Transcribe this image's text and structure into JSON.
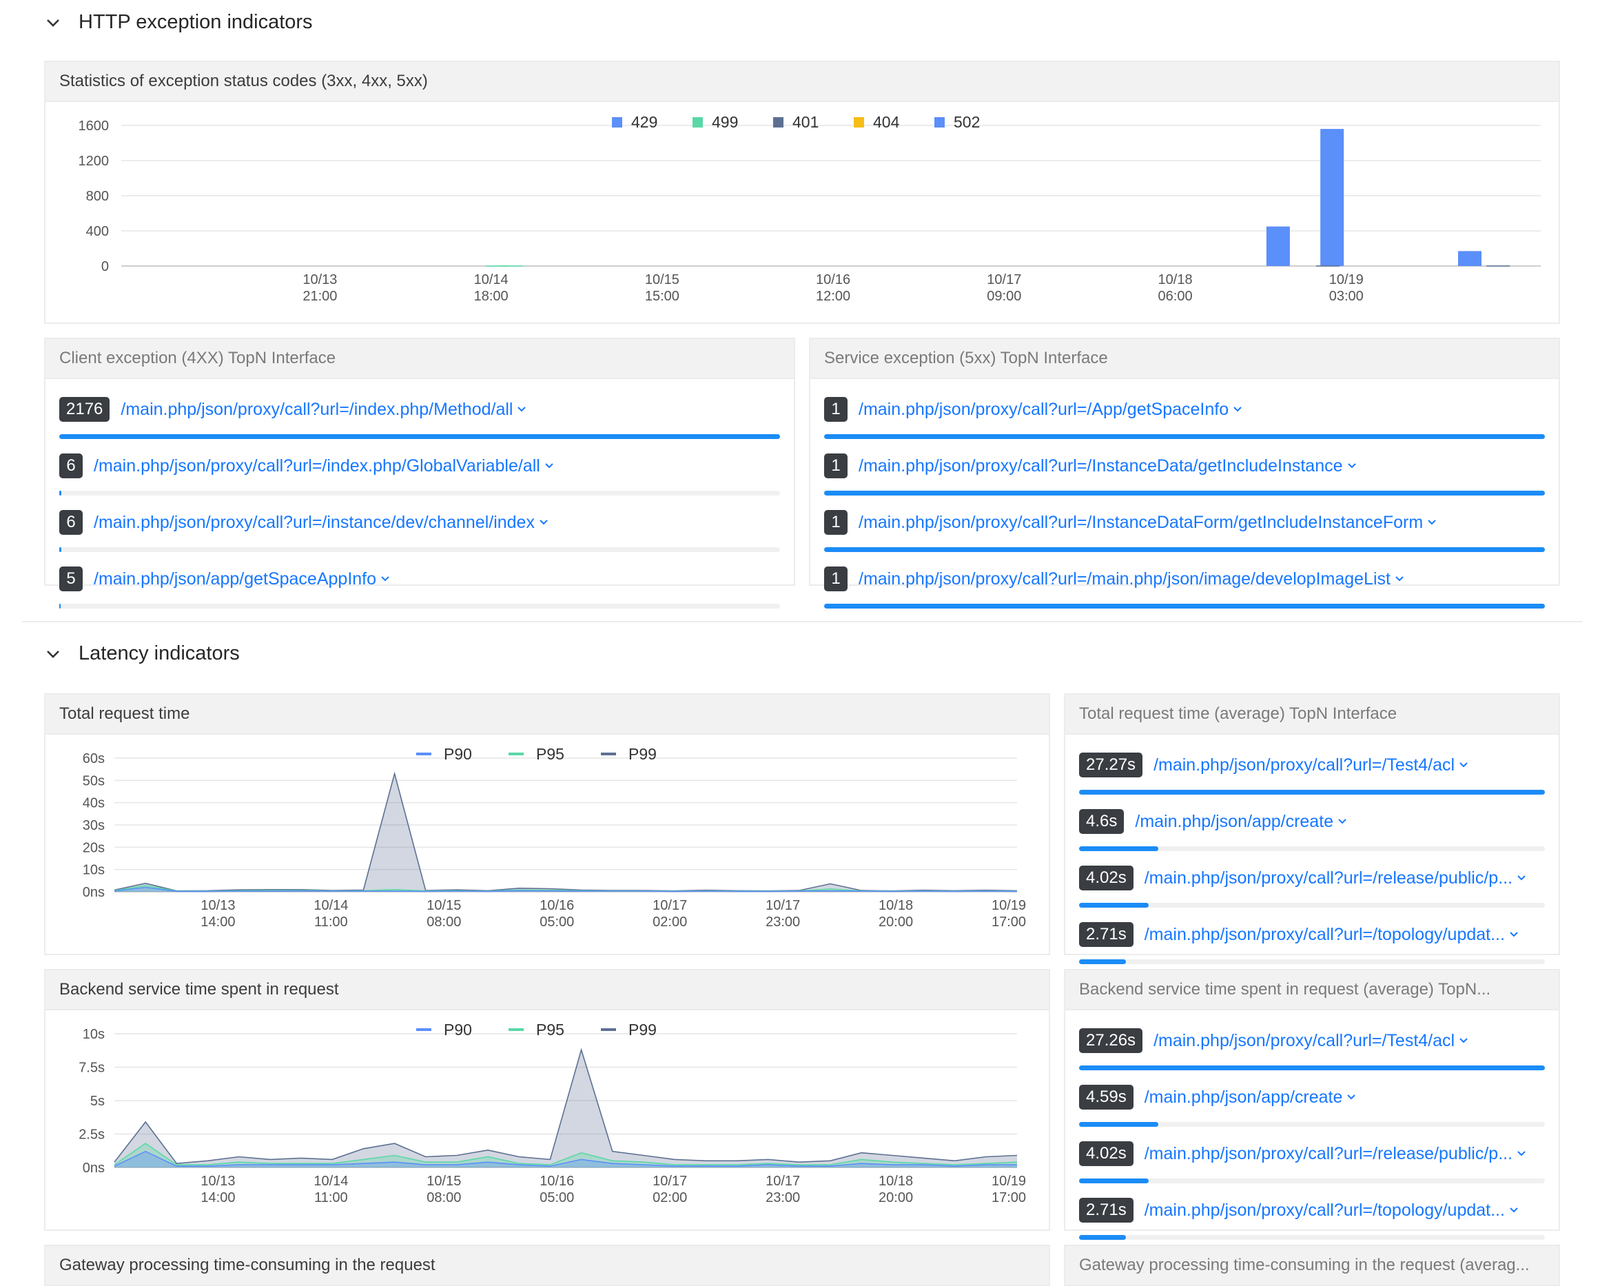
{
  "http_section": {
    "title": "HTTP exception indicators"
  },
  "latency_section": {
    "title": "Latency indicators"
  },
  "status_codes_card": {
    "title": "Statistics of exception status codes (3xx, 4xx, 5xx)"
  },
  "client_topn": {
    "title": "Client exception (4XX) TopN Interface",
    "items": [
      {
        "value": "2176",
        "label": "/main.php/json/proxy/call?url=/index.php/Method/all",
        "ratio": 1.0
      },
      {
        "value": "6",
        "label": "/main.php/json/proxy/call?url=/index.php/GlobalVariable/all",
        "ratio": 0.003
      },
      {
        "value": "6",
        "label": "/main.php/json/proxy/call?url=/instance/dev/channel/index",
        "ratio": 0.003
      },
      {
        "value": "5",
        "label": "/main.php/json/app/getSpaceAppInfo",
        "ratio": 0.002
      }
    ]
  },
  "service_topn": {
    "title": "Service exception (5xx) TopN Interface",
    "items": [
      {
        "value": "1",
        "label": "/main.php/json/proxy/call?url=/App/getSpaceInfo",
        "ratio": 1.0
      },
      {
        "value": "1",
        "label": "/main.php/json/proxy/call?url=/InstanceData/getIncludeInstance",
        "ratio": 1.0
      },
      {
        "value": "1",
        "label": "/main.php/json/proxy/call?url=/InstanceDataForm/getIncludeInstanceForm",
        "ratio": 1.0
      },
      {
        "value": "1",
        "label": "/main.php/json/proxy/call?url=/main.php/json/image/developImageList",
        "ratio": 1.0
      }
    ]
  },
  "total_request_card": {
    "title": "Total request time"
  },
  "total_topn": {
    "title": "Total request time (average) TopN Interface",
    "items": [
      {
        "value": "27.27s",
        "label": "/main.php/json/proxy/call?url=/Test4/acl",
        "ratio": 1.0
      },
      {
        "value": "4.6s",
        "label": "/main.php/json/app/create",
        "ratio": 0.17
      },
      {
        "value": "4.02s",
        "label": "/main.php/json/proxy/call?url=/release/public/p...",
        "ratio": 0.15
      },
      {
        "value": "2.71s",
        "label": "/main.php/json/proxy/call?url=/topology/updat...",
        "ratio": 0.1
      }
    ]
  },
  "backend_card": {
    "title": "Backend service time spent in request"
  },
  "backend_topn": {
    "title": "Backend service time spent in request (average) TopN...",
    "items": [
      {
        "value": "27.26s",
        "label": "/main.php/json/proxy/call?url=/Test4/acl",
        "ratio": 1.0
      },
      {
        "value": "4.59s",
        "label": "/main.php/json/app/create",
        "ratio": 0.17
      },
      {
        "value": "4.02s",
        "label": "/main.php/json/proxy/call?url=/release/public/p...",
        "ratio": 0.15
      },
      {
        "value": "2.71s",
        "label": "/main.php/json/proxy/call?url=/topology/updat...",
        "ratio": 0.1
      }
    ]
  },
  "gateway_card": {
    "title": "Gateway processing time-consuming in the request"
  },
  "gateway_topn": {
    "title": "Gateway processing time-consuming in the request (averag..."
  },
  "colors": {
    "429": "#5b8ff9",
    "499": "#5ad8a6",
    "401": "#5d7092",
    "404": "#f6bd16",
    "502": "#5b8ff9",
    "p90": "#5b8ff9",
    "p95": "#5ad8a6",
    "p99": "#5d7092"
  },
  "chart_data": [
    {
      "type": "bar",
      "title": "Statistics of exception status codes (3xx, 4xx, 5xx)",
      "x_ticks": [
        [
          "10/13",
          "21:00"
        ],
        [
          "10/14",
          "18:00"
        ],
        [
          "10/15",
          "15:00"
        ],
        [
          "10/16",
          "12:00"
        ],
        [
          "10/17",
          "09:00"
        ],
        [
          "10/18",
          "06:00"
        ],
        [
          "10/19",
          "03:00"
        ]
      ],
      "y_ticks": [
        "0",
        "400",
        "800",
        "1200",
        "1600"
      ],
      "ylim": [
        0,
        1600
      ],
      "legend_position": "top",
      "series": [
        {
          "name": "429",
          "points": [
            [
              0.815,
              450
            ],
            [
              0.853,
              1560
            ],
            [
              0.95,
              170
            ]
          ]
        },
        {
          "name": "499",
          "points": [
            [
              0.265,
              5
            ],
            [
              0.275,
              6
            ]
          ]
        },
        {
          "name": "401",
          "points": [
            [
              0.85,
              6
            ],
            [
              0.97,
              6
            ]
          ]
        },
        {
          "name": "404",
          "points": []
        },
        {
          "name": "502",
          "points": []
        }
      ]
    },
    {
      "type": "area",
      "title": "Total request time",
      "x_ticks": [
        [
          "10/13",
          "14:00"
        ],
        [
          "10/14",
          "11:00"
        ],
        [
          "10/15",
          "08:00"
        ],
        [
          "10/16",
          "05:00"
        ],
        [
          "10/17",
          "02:00"
        ],
        [
          "10/17",
          "23:00"
        ],
        [
          "10/18",
          "20:00"
        ],
        [
          "10/19",
          "17:00"
        ]
      ],
      "y_ticks": [
        "0ns",
        "10s",
        "20s",
        "30s",
        "40s",
        "50s",
        "60s"
      ],
      "ylim": [
        0,
        60
      ],
      "legend_position": "top",
      "series": [
        {
          "name": "P90",
          "values": [
            0.3,
            2.0,
            0.2,
            0.2,
            0.3,
            0.3,
            0.4,
            0.3,
            0.3,
            0.3,
            0.2,
            0.3,
            0.2,
            0.5,
            0.4,
            0.3,
            0.3,
            0.3,
            0.2,
            0.3,
            0.2,
            0.2,
            0.3,
            0.4,
            0.3,
            0.2,
            0.3,
            0.2,
            0.3,
            0.2
          ]
        },
        {
          "name": "P95",
          "values": [
            0.5,
            2.8,
            0.3,
            0.3,
            0.5,
            0.6,
            0.6,
            0.4,
            0.5,
            1.0,
            0.4,
            0.5,
            0.3,
            0.8,
            0.7,
            0.5,
            0.4,
            0.4,
            0.3,
            0.4,
            0.3,
            0.3,
            0.4,
            1.2,
            0.4,
            0.3,
            0.4,
            0.3,
            0.4,
            0.3
          ]
        },
        {
          "name": "P99",
          "values": [
            0.8,
            3.8,
            0.4,
            0.5,
            0.9,
            1.0,
            1.0,
            0.6,
            0.8,
            53,
            0.6,
            0.9,
            0.5,
            1.6,
            1.4,
            0.8,
            0.6,
            0.6,
            0.4,
            0.7,
            0.5,
            0.4,
            0.6,
            3.6,
            0.6,
            0.4,
            0.7,
            0.5,
            0.7,
            0.5
          ]
        }
      ]
    },
    {
      "type": "area",
      "title": "Backend service time spent in request",
      "x_ticks": [
        [
          "10/13",
          "14:00"
        ],
        [
          "10/14",
          "11:00"
        ],
        [
          "10/15",
          "08:00"
        ],
        [
          "10/16",
          "05:00"
        ],
        [
          "10/17",
          "02:00"
        ],
        [
          "10/17",
          "23:00"
        ],
        [
          "10/18",
          "20:00"
        ],
        [
          "10/19",
          "17:00"
        ]
      ],
      "y_ticks": [
        "0ns",
        "2.5s",
        "5s",
        "7.5s",
        "10s"
      ],
      "ylim": [
        0,
        10
      ],
      "legend_position": "top",
      "series": [
        {
          "name": "P90",
          "values": [
            0.1,
            1.2,
            0.1,
            0.1,
            0.2,
            0.2,
            0.2,
            0.2,
            0.3,
            0.4,
            0.2,
            0.2,
            0.4,
            0.2,
            0.1,
            0.6,
            0.3,
            0.2,
            0.1,
            0.1,
            0.1,
            0.2,
            0.1,
            0.1,
            0.3,
            0.2,
            0.2,
            0.1,
            0.2,
            0.2
          ]
        },
        {
          "name": "P95",
          "values": [
            0.2,
            1.8,
            0.2,
            0.2,
            0.4,
            0.3,
            0.3,
            0.3,
            0.6,
            0.9,
            0.4,
            0.4,
            0.8,
            0.3,
            0.2,
            1.1,
            0.5,
            0.4,
            0.2,
            0.2,
            0.2,
            0.3,
            0.2,
            0.2,
            0.6,
            0.4,
            0.3,
            0.2,
            0.3,
            0.4
          ]
        },
        {
          "name": "P99",
          "values": [
            0.4,
            3.4,
            0.3,
            0.5,
            0.8,
            0.6,
            0.7,
            0.6,
            1.4,
            1.8,
            0.8,
            0.9,
            1.3,
            0.8,
            0.6,
            8.8,
            1.2,
            0.9,
            0.6,
            0.5,
            0.5,
            0.6,
            0.4,
            0.5,
            1.1,
            0.9,
            0.7,
            0.5,
            0.8,
            0.9
          ]
        }
      ]
    }
  ]
}
